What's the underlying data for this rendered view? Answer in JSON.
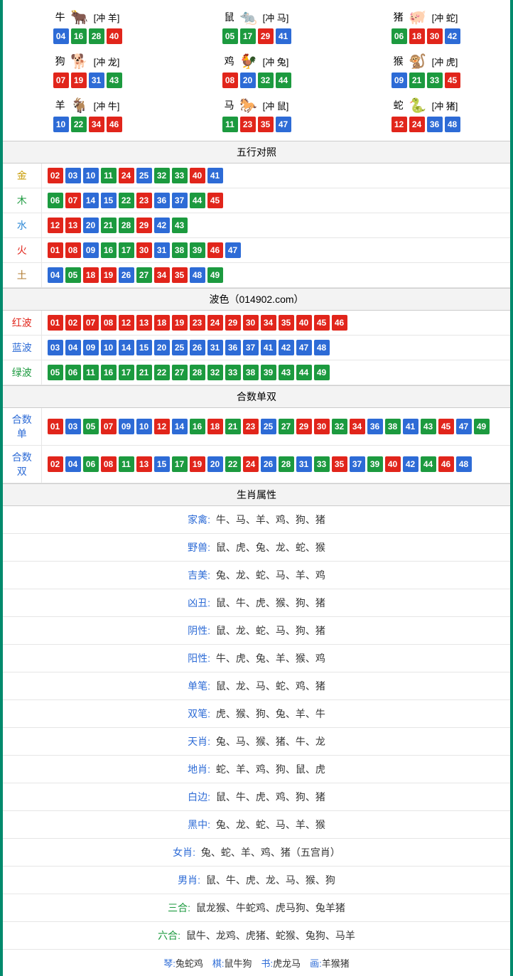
{
  "colors": {
    "red": "#e1251b",
    "blue": "#2d6bd6",
    "green": "#1c9a3f",
    "header_bg": "#f3f3f3",
    "border": "#e6e6e6",
    "frame": "#008a6c"
  },
  "ball_colors": {
    "red": [
      "01",
      "02",
      "07",
      "08",
      "12",
      "13",
      "18",
      "19",
      "23",
      "24",
      "29",
      "30",
      "34",
      "35",
      "40",
      "45",
      "46"
    ],
    "blue": [
      "03",
      "04",
      "09",
      "10",
      "14",
      "15",
      "20",
      "25",
      "26",
      "31",
      "36",
      "37",
      "41",
      "42",
      "47",
      "48"
    ],
    "green": [
      "05",
      "06",
      "11",
      "16",
      "17",
      "21",
      "22",
      "27",
      "28",
      "32",
      "33",
      "38",
      "39",
      "43",
      "44",
      "49"
    ]
  },
  "zodiac": [
    {
      "name": "牛",
      "emoji": "🐂",
      "emoji_color": "#c0182a",
      "conflict": "[冲 羊]",
      "balls": [
        "04",
        "16",
        "28",
        "40"
      ]
    },
    {
      "name": "鼠",
      "emoji": "🐀",
      "emoji_color": "#4aa7c9",
      "conflict": "[冲 马]",
      "balls": [
        "05",
        "17",
        "29",
        "41"
      ]
    },
    {
      "name": "猪",
      "emoji": "🐖",
      "emoji_color": "#e584a2",
      "conflict": "[冲 蛇]",
      "balls": [
        "06",
        "18",
        "30",
        "42"
      ]
    },
    {
      "name": "狗",
      "emoji": "🐕",
      "emoji_color": "#6aa2d4",
      "conflict": "[冲 龙]",
      "balls": [
        "07",
        "19",
        "31",
        "43"
      ]
    },
    {
      "name": "鸡",
      "emoji": "🐓",
      "emoji_color": "#d6a22c",
      "conflict": "[冲 兔]",
      "balls": [
        "08",
        "20",
        "32",
        "44"
      ]
    },
    {
      "name": "猴",
      "emoji": "🐒",
      "emoji_color": "#d65a2c",
      "conflict": "[冲 虎]",
      "balls": [
        "09",
        "21",
        "33",
        "45"
      ]
    },
    {
      "name": "羊",
      "emoji": "🐐",
      "emoji_color": "#cba33a",
      "conflict": "[冲 牛]",
      "balls": [
        "10",
        "22",
        "34",
        "46"
      ]
    },
    {
      "name": "马",
      "emoji": "🐎",
      "emoji_color": "#c0182a",
      "conflict": "[冲 鼠]",
      "balls": [
        "11",
        "23",
        "35",
        "47"
      ]
    },
    {
      "name": "蛇",
      "emoji": "🐍",
      "emoji_color": "#4aa53a",
      "conflict": "[冲 猪]",
      "balls": [
        "12",
        "24",
        "36",
        "48"
      ]
    }
  ],
  "sections": {
    "wuxing": {
      "title": "五行对照",
      "rows": [
        {
          "label": "金",
          "cls": "gold",
          "balls": [
            "02",
            "03",
            "10",
            "11",
            "24",
            "25",
            "32",
            "33",
            "40",
            "41"
          ]
        },
        {
          "label": "木",
          "cls": "wood",
          "balls": [
            "06",
            "07",
            "14",
            "15",
            "22",
            "23",
            "36",
            "37",
            "44",
            "45"
          ]
        },
        {
          "label": "水",
          "cls": "water",
          "balls": [
            "12",
            "13",
            "20",
            "21",
            "28",
            "29",
            "42",
            "43"
          ]
        },
        {
          "label": "火",
          "cls": "fire",
          "balls": [
            "01",
            "08",
            "09",
            "16",
            "17",
            "30",
            "31",
            "38",
            "39",
            "46",
            "47"
          ]
        },
        {
          "label": "土",
          "cls": "earth",
          "balls": [
            "04",
            "05",
            "18",
            "19",
            "26",
            "27",
            "34",
            "35",
            "48",
            "49"
          ]
        }
      ]
    },
    "bose": {
      "title": "波色（014902.com）",
      "rows": [
        {
          "label": "红波",
          "cls": "redtxt",
          "balls": [
            "01",
            "02",
            "07",
            "08",
            "12",
            "13",
            "18",
            "19",
            "23",
            "24",
            "29",
            "30",
            "34",
            "35",
            "40",
            "45",
            "46"
          ]
        },
        {
          "label": "蓝波",
          "cls": "bluetxt",
          "balls": [
            "03",
            "04",
            "09",
            "10",
            "14",
            "15",
            "20",
            "25",
            "26",
            "31",
            "36",
            "37",
            "41",
            "42",
            "47",
            "48"
          ]
        },
        {
          "label": "绿波",
          "cls": "greentxt",
          "balls": [
            "05",
            "06",
            "11",
            "16",
            "17",
            "21",
            "22",
            "27",
            "28",
            "32",
            "33",
            "38",
            "39",
            "43",
            "44",
            "49"
          ]
        }
      ]
    },
    "heshu": {
      "title": "合数单双",
      "rows": [
        {
          "label": "合数单",
          "cls": "bluetxt",
          "balls": [
            "01",
            "03",
            "05",
            "07",
            "09",
            "10",
            "12",
            "14",
            "16",
            "18",
            "21",
            "23",
            "25",
            "27",
            "29",
            "30",
            "32",
            "34",
            "36",
            "38",
            "41",
            "43",
            "45",
            "47",
            "49"
          ]
        },
        {
          "label": "合数双",
          "cls": "bluetxt",
          "balls": [
            "02",
            "04",
            "06",
            "08",
            "11",
            "13",
            "15",
            "17",
            "19",
            "20",
            "22",
            "24",
            "26",
            "28",
            "31",
            "33",
            "35",
            "37",
            "39",
            "40",
            "42",
            "44",
            "46",
            "48"
          ]
        }
      ]
    }
  },
  "attrs": {
    "title": "生肖属性",
    "rows": [
      {
        "label": "家禽:",
        "cls": "bluetxt",
        "value": "牛、马、羊、鸡、狗、猪"
      },
      {
        "label": "野兽:",
        "cls": "bluetxt",
        "value": "鼠、虎、兔、龙、蛇、猴"
      },
      {
        "label": "吉美:",
        "cls": "bluetxt",
        "value": "兔、龙、蛇、马、羊、鸡"
      },
      {
        "label": "凶丑:",
        "cls": "bluetxt",
        "value": "鼠、牛、虎、猴、狗、猪"
      },
      {
        "label": "阴性:",
        "cls": "bluetxt",
        "value": "鼠、龙、蛇、马、狗、猪"
      },
      {
        "label": "阳性:",
        "cls": "bluetxt",
        "value": "牛、虎、兔、羊、猴、鸡"
      },
      {
        "label": "单笔:",
        "cls": "bluetxt",
        "value": "鼠、龙、马、蛇、鸡、猪"
      },
      {
        "label": "双笔:",
        "cls": "bluetxt",
        "value": "虎、猴、狗、兔、羊、牛"
      },
      {
        "label": "天肖:",
        "cls": "bluetxt",
        "value": "兔、马、猴、猪、牛、龙"
      },
      {
        "label": "地肖:",
        "cls": "bluetxt",
        "value": "蛇、羊、鸡、狗、鼠、虎"
      },
      {
        "label": "白边:",
        "cls": "bluetxt",
        "value": "鼠、牛、虎、鸡、狗、猪"
      },
      {
        "label": "黑中:",
        "cls": "bluetxt",
        "value": "兔、龙、蛇、马、羊、猴"
      },
      {
        "label": "女肖:",
        "cls": "bluetxt",
        "value": "兔、蛇、羊、鸡、猪（五宫肖）"
      },
      {
        "label": "男肖:",
        "cls": "bluetxt",
        "value": "鼠、牛、虎、龙、马、猴、狗"
      },
      {
        "label": "三合:",
        "cls": "greentxt",
        "value": "鼠龙猴、牛蛇鸡、虎马狗、兔羊猪"
      },
      {
        "label": "六合:",
        "cls": "greentxt",
        "value": "鼠牛、龙鸡、虎猪、蛇猴、兔狗、马羊"
      }
    ]
  },
  "bottom": [
    {
      "key": "琴:",
      "val": "兔蛇鸡"
    },
    {
      "key": "棋:",
      "val": "鼠牛狗"
    },
    {
      "key": "书:",
      "val": "虎龙马"
    },
    {
      "key": "画:",
      "val": "羊猴猪"
    }
  ]
}
